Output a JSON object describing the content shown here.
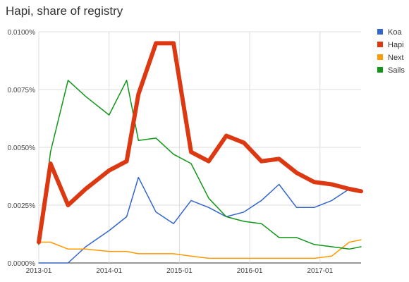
{
  "chart_data": {
    "type": "line",
    "title": "Hapi, share of registry",
    "x": [
      "2013-01",
      "2013-03",
      "2013-06",
      "2013-09",
      "2014-01",
      "2014-04",
      "2014-06",
      "2014-09",
      "2014-12",
      "2015-03",
      "2015-06",
      "2015-09",
      "2015-12",
      "2016-03",
      "2016-06",
      "2016-09",
      "2016-12",
      "2017-03",
      "2017-06",
      "2017-08"
    ],
    "x_ticks": [
      "2013-01",
      "2014-01",
      "2015-01",
      "2016-01",
      "2017-01"
    ],
    "y_ticks": [
      "0.0000%",
      "0.0025%",
      "0.0050%",
      "0.0075%",
      "0.0100%"
    ],
    "ylim": [
      0,
      0.01
    ],
    "y_unit": "%",
    "grid": true,
    "legend_position": "right",
    "series": [
      {
        "name": "Koa",
        "color": "#3366cc",
        "width": 1.5,
        "values": [
          0.0,
          0.0,
          0.0,
          0.0007,
          0.0014,
          0.002,
          0.0037,
          0.0022,
          0.0017,
          0.0027,
          0.0024,
          0.002,
          0.0022,
          0.0027,
          0.0034,
          0.0024,
          0.0024,
          0.0027,
          0.0032,
          0.0031
        ]
      },
      {
        "name": "Hapi",
        "color": "#dc3912",
        "width": 6,
        "values": [
          0.0009,
          0.0043,
          0.0025,
          0.0032,
          0.004,
          0.0044,
          0.0073,
          0.0095,
          0.0095,
          0.0048,
          0.0044,
          0.0055,
          0.0052,
          0.0044,
          0.0045,
          0.0039,
          0.0035,
          0.0034,
          0.0032,
          0.0031
        ]
      },
      {
        "name": "Next",
        "color": "#ff9900",
        "width": 1.5,
        "values": [
          0.0009,
          0.0009,
          0.0006,
          0.0006,
          0.0005,
          0.0005,
          0.0004,
          0.0004,
          0.0004,
          0.0003,
          0.0002,
          0.0002,
          0.0002,
          0.0002,
          0.0002,
          0.0002,
          0.0002,
          0.0003,
          0.0009,
          0.001
        ]
      },
      {
        "name": "Sails",
        "color": "#109618",
        "width": 1.5,
        "values": [
          0.0008,
          0.0048,
          0.0079,
          0.0072,
          0.0064,
          0.0079,
          0.0053,
          0.0054,
          0.0047,
          0.0043,
          0.0028,
          0.002,
          0.0018,
          0.0017,
          0.0011,
          0.0011,
          0.0008,
          0.0007,
          0.0006,
          0.0007
        ]
      }
    ]
  }
}
